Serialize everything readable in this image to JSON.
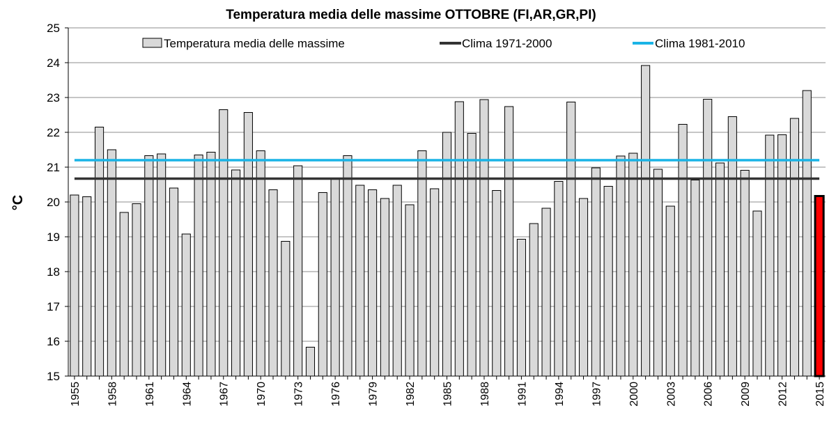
{
  "chart_data": {
    "type": "bar",
    "title": "Temperatura media delle massime OTTOBRE (FI,AR,GR,PI)",
    "xlabel": "",
    "ylabel": "°C",
    "ylim": [
      15,
      25
    ],
    "yticks": [
      15,
      16,
      17,
      18,
      19,
      20,
      21,
      22,
      23,
      24,
      25
    ],
    "grid": true,
    "legend_position": "top",
    "x": [
      1955,
      1956,
      1957,
      1958,
      1959,
      1960,
      1961,
      1962,
      1963,
      1964,
      1965,
      1966,
      1967,
      1968,
      1969,
      1970,
      1971,
      1972,
      1973,
      1974,
      1975,
      1976,
      1977,
      1978,
      1979,
      1980,
      1981,
      1982,
      1983,
      1984,
      1985,
      1986,
      1987,
      1988,
      1989,
      1990,
      1991,
      1992,
      1993,
      1994,
      1995,
      1996,
      1997,
      1998,
      1999,
      2000,
      2001,
      2002,
      2003,
      2004,
      2005,
      2006,
      2007,
      2008,
      2009,
      2010,
      2011,
      2012,
      2013,
      2014,
      2015
    ],
    "xtick_labels": [
      "1955",
      "1958",
      "1961",
      "1964",
      "1967",
      "1970",
      "1973",
      "1976",
      "1979",
      "1982",
      "1985",
      "1988",
      "1991",
      "1994",
      "1997",
      "2000",
      "2003",
      "2006",
      "2009",
      "2012",
      "2015"
    ],
    "series": [
      {
        "name": "Temperatura media delle massime",
        "kind": "bar",
        "color": "#d9d9d9",
        "values": [
          20.2,
          20.15,
          22.15,
          21.5,
          19.7,
          19.95,
          21.33,
          21.38,
          20.4,
          19.08,
          21.35,
          21.43,
          22.65,
          20.92,
          22.57,
          21.47,
          20.35,
          18.87,
          21.04,
          15.83,
          20.27,
          20.68,
          21.33,
          20.48,
          20.35,
          20.1,
          20.48,
          19.92,
          21.47,
          20.38,
          22.0,
          22.88,
          21.97,
          22.94,
          20.33,
          22.74,
          18.93,
          19.38,
          19.82,
          20.59,
          22.87,
          20.1,
          20.98,
          20.45,
          21.32,
          21.4,
          23.92,
          20.94,
          19.88,
          22.23,
          20.63,
          22.95,
          21.12,
          22.45,
          20.91,
          19.74,
          21.92,
          21.93,
          22.4,
          23.2,
          20.17
        ],
        "highlight": {
          "index": 60,
          "year": 2015,
          "fill": "#ff0000",
          "stroke": "#000000"
        }
      },
      {
        "name": "Clima 1971-2000",
        "kind": "line",
        "color": "#333333",
        "value": 20.67
      },
      {
        "name": "Clima 1981-2010",
        "kind": "line",
        "color": "#1ab4e6",
        "value": 21.2
      }
    ]
  }
}
